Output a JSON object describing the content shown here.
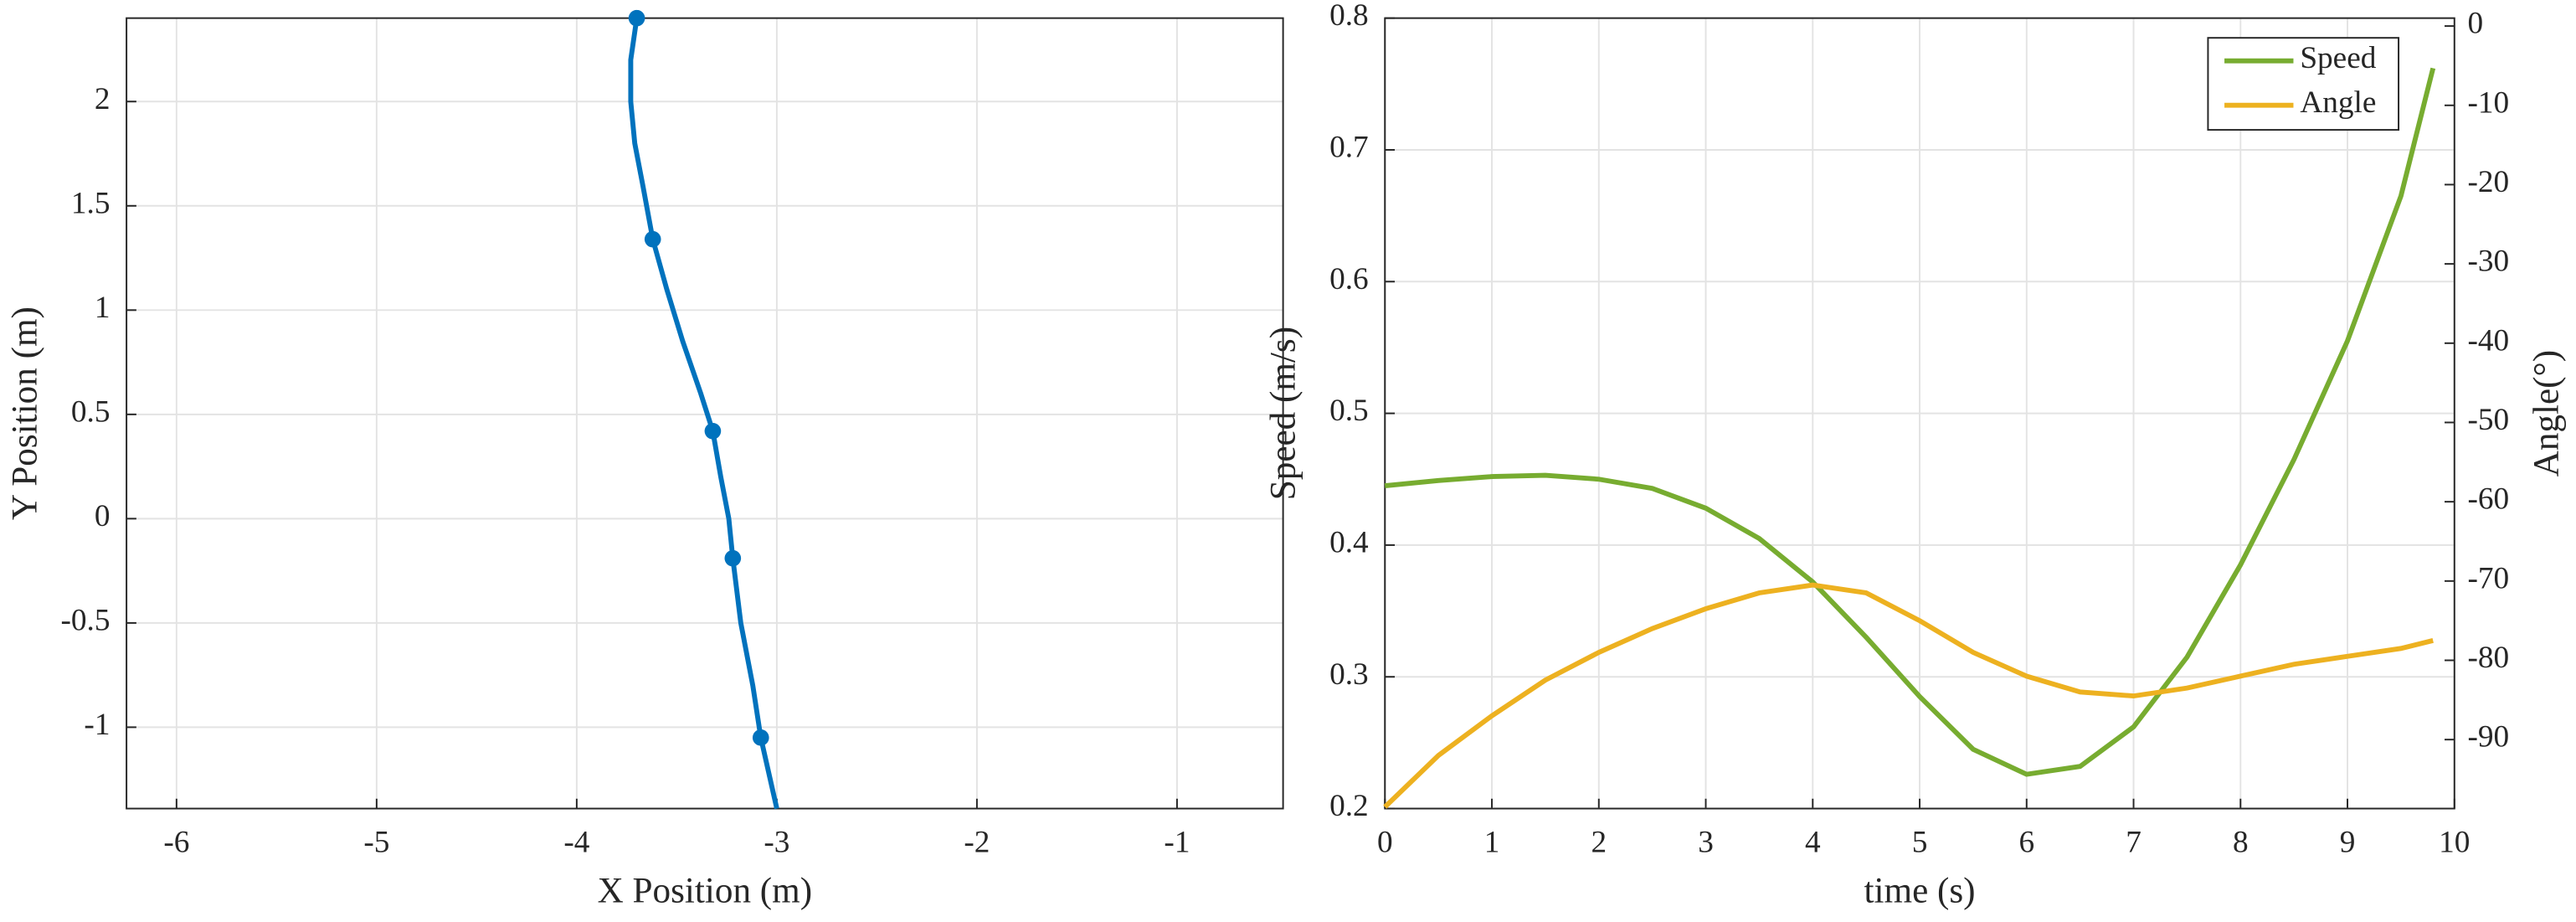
{
  "chart_data": [
    {
      "type": "line",
      "xlabel": "X Position (m)",
      "ylabel": "Y Position (m)",
      "xlim": [
        -6.25,
        -0.47
      ],
      "ylim": [
        -1.39,
        2.4
      ],
      "xticks": [
        -6,
        -5,
        -4,
        -3,
        -2,
        -1
      ],
      "yticks": [
        -1,
        -0.5,
        0,
        0.5,
        1,
        1.5,
        2
      ],
      "grid": true,
      "series": [
        {
          "color": "#0072bd",
          "x": [
            -3.7,
            -3.73,
            -3.73,
            -3.71,
            -3.67,
            -3.62,
            -3.55,
            -3.47,
            -3.38,
            -3.32,
            -3.28,
            -3.24,
            -3.22,
            -3.18,
            -3.12,
            -3.08,
            -3.0
          ],
          "values": [
            2.4,
            2.2,
            2.0,
            1.8,
            1.6,
            1.34,
            1.1,
            0.85,
            0.6,
            0.42,
            0.2,
            0.0,
            -0.19,
            -0.5,
            -0.8,
            -1.05,
            -1.39
          ]
        },
        {
          "color": "#0072bd",
          "marker": "circle",
          "line": false,
          "x": [
            -3.7,
            -3.62,
            -3.32,
            -3.22,
            -3.08
          ],
          "values": [
            2.4,
            1.34,
            0.42,
            -0.19,
            -1.05
          ]
        }
      ]
    },
    {
      "type": "line",
      "xlabel": "time (s)",
      "ylabel": "Speed (m/s)",
      "y2label": "Angle(°)",
      "x": [
        0,
        0.5,
        1,
        1.5,
        2,
        2.5,
        3,
        3.5,
        4,
        4.5,
        5,
        5.5,
        6,
        6.5,
        7,
        7.5,
        8,
        8.5,
        9,
        9.5,
        9.8
      ],
      "xlim": [
        0,
        10
      ],
      "ylim": [
        0.2,
        0.8
      ],
      "y2lim": [
        -98.7,
        1
      ],
      "xticks": [
        0,
        1,
        2,
        3,
        4,
        5,
        6,
        7,
        8,
        9,
        10
      ],
      "yticks": [
        0.2,
        0.3,
        0.4,
        0.5,
        0.6,
        0.7,
        0.8
      ],
      "y2ticks": [
        -90,
        -80,
        -70,
        -60,
        -50,
        -40,
        -30,
        -20,
        -10,
        0
      ],
      "grid": true,
      "legend": "northeast",
      "series": [
        {
          "name": "Speed",
          "color": "#77ac30",
          "values": [
            0.445,
            0.449,
            0.452,
            0.453,
            0.45,
            0.443,
            0.428,
            0.405,
            0.372,
            0.33,
            0.285,
            0.245,
            0.226,
            0.232,
            0.262,
            0.315,
            0.385,
            0.465,
            0.555,
            0.665,
            0.762
          ]
        },
        {
          "name": "Angle",
          "color": "#edb120",
          "axis": "y2",
          "values": [
            -98.5,
            -92,
            -87,
            -82.5,
            -79,
            -76,
            -73.5,
            -71.5,
            -70.5,
            -71.5,
            -75,
            -79,
            -82,
            -84,
            -84.5,
            -83.5,
            -82,
            -80.5,
            -79.5,
            -78.5,
            -77.5
          ]
        }
      ]
    }
  ]
}
